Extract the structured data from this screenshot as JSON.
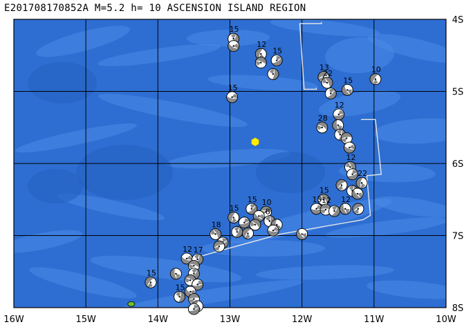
{
  "title": "E201708170852A M=5.2 h= 10 ASCENSION ISLAND REGION",
  "map": {
    "lon_range": [
      -16,
      -10
    ],
    "lat_range": [
      -8,
      -4
    ],
    "x_ticks": [
      "16W",
      "15W",
      "14W",
      "13W",
      "12W",
      "11W",
      "10W"
    ],
    "y_ticks": [
      "4S",
      "5S",
      "6S",
      "7S",
      "8S"
    ],
    "grid": true,
    "colors": {
      "ocean": "#2e6ed2",
      "ridge": "#4a8ae6",
      "deep": "#2560c2",
      "grid": "#000000",
      "plate_boundary": "#e8e8e8",
      "mechanism_shade": "#8a8a8a",
      "event_marker": "#ffee00",
      "island": "#6fbf2a"
    },
    "event": {
      "lon": -12.65,
      "lat": -5.7
    },
    "island": {
      "lon": -14.37,
      "lat": -7.95
    },
    "plate_boundary": [
      [
        [
          -11.93,
          -4.06
        ],
        [
          -11.73,
          -4.06
        ],
        [
          -11.73,
          -4.04
        ]
      ],
      [
        [
          -11.93,
          -4.06
        ],
        [
          -12.03,
          -4.06
        ],
        [
          -11.97,
          -4.97
        ],
        [
          -11.8,
          -4.97
        ],
        [
          -11.8,
          -4.95
        ]
      ],
      [
        [
          -11.18,
          -5.39
        ],
        [
          -10.98,
          -5.39
        ],
        [
          -10.9,
          -6.15
        ],
        [
          -11.1,
          -6.17
        ],
        [
          -11.05,
          -6.72
        ],
        [
          -11.15,
          -6.78
        ],
        [
          -12.3,
          -6.98
        ],
        [
          -13.1,
          -7.2
        ],
        [
          -13.45,
          -7.3
        ],
        [
          -13.45,
          -7.32
        ]
      ]
    ],
    "mechanisms": [
      {
        "lon": -12.95,
        "lat": -4.27,
        "label": "15",
        "rot": 30
      },
      {
        "lon": -12.95,
        "lat": -4.37,
        "label": "",
        "rot": 120
      },
      {
        "lon": -12.57,
        "lat": -4.48,
        "label": "12",
        "rot": 200
      },
      {
        "lon": -12.57,
        "lat": -4.6,
        "label": "",
        "rot": 290
      },
      {
        "lon": -12.35,
        "lat": -4.57,
        "label": "15",
        "rot": 60
      },
      {
        "lon": -12.4,
        "lat": -4.76,
        "label": "",
        "rot": 10
      },
      {
        "lon": -12.97,
        "lat": -5.08,
        "label": "15",
        "rot": 100
      },
      {
        "lon": -11.7,
        "lat": -4.8,
        "label": "13",
        "rot": 250
      },
      {
        "lon": -11.65,
        "lat": -4.88,
        "label": "22",
        "rot": 330
      },
      {
        "lon": -11.6,
        "lat": -5.03,
        "label": "",
        "rot": 45
      },
      {
        "lon": -11.37,
        "lat": -4.98,
        "label": "15",
        "rot": 150
      },
      {
        "lon": -10.98,
        "lat": -4.83,
        "label": "10",
        "rot": 210
      },
      {
        "lon": -11.49,
        "lat": -5.32,
        "label": "12",
        "rot": 80
      },
      {
        "lon": -11.72,
        "lat": -5.5,
        "label": "28",
        "rot": 300
      },
      {
        "lon": -11.5,
        "lat": -5.47,
        "label": "",
        "rot": 170
      },
      {
        "lon": -11.47,
        "lat": -5.6,
        "label": "",
        "rot": 20
      },
      {
        "lon": -11.38,
        "lat": -5.65,
        "label": "",
        "rot": 260
      },
      {
        "lon": -11.34,
        "lat": -5.78,
        "label": "",
        "rot": 110
      },
      {
        "lon": -11.33,
        "lat": -6.05,
        "label": "12",
        "rot": 340
      },
      {
        "lon": -11.3,
        "lat": -6.15,
        "label": "",
        "rot": 70
      },
      {
        "lon": -11.17,
        "lat": -6.27,
        "label": "22",
        "rot": 190
      },
      {
        "lon": -11.45,
        "lat": -6.3,
        "label": "",
        "rot": 230
      },
      {
        "lon": -11.3,
        "lat": -6.38,
        "label": "",
        "rot": 15
      },
      {
        "lon": -11.23,
        "lat": -6.42,
        "label": "",
        "rot": 140
      },
      {
        "lon": -11.7,
        "lat": -6.5,
        "label": "15",
        "rot": 320
      },
      {
        "lon": -11.8,
        "lat": -6.63,
        "label": "15",
        "rot": 90
      },
      {
        "lon": -11.67,
        "lat": -6.64,
        "label": "12",
        "rot": 270
      },
      {
        "lon": -11.55,
        "lat": -6.66,
        "label": "",
        "rot": 35
      },
      {
        "lon": -11.4,
        "lat": -6.63,
        "label": "12",
        "rot": 160
      },
      {
        "lon": -11.22,
        "lat": -6.63,
        "label": "",
        "rot": 240
      },
      {
        "lon": -12.7,
        "lat": -6.63,
        "label": "15",
        "rot": 50
      },
      {
        "lon": -12.5,
        "lat": -6.67,
        "label": "10",
        "rot": 280
      },
      {
        "lon": -12.6,
        "lat": -6.73,
        "label": "",
        "rot": 130
      },
      {
        "lon": -12.45,
        "lat": -6.8,
        "label": "8",
        "rot": 5
      },
      {
        "lon": -12.95,
        "lat": -6.75,
        "label": "15",
        "rot": 200
      },
      {
        "lon": -12.8,
        "lat": -6.82,
        "label": "",
        "rot": 75
      },
      {
        "lon": -12.65,
        "lat": -6.85,
        "label": "",
        "rot": 310
      },
      {
        "lon": -12.35,
        "lat": -6.85,
        "label": "",
        "rot": 180
      },
      {
        "lon": -12.4,
        "lat": -6.93,
        "label": "",
        "rot": 95
      },
      {
        "lon": -12.9,
        "lat": -6.95,
        "label": "",
        "rot": 25
      },
      {
        "lon": -12.75,
        "lat": -6.97,
        "label": "",
        "rot": 215
      },
      {
        "lon": -12.0,
        "lat": -6.98,
        "label": "",
        "rot": 145
      },
      {
        "lon": -13.2,
        "lat": -6.98,
        "label": "18",
        "rot": 330
      },
      {
        "lon": -13.1,
        "lat": -7.1,
        "label": "",
        "rot": 60
      },
      {
        "lon": -13.15,
        "lat": -7.15,
        "label": "",
        "rot": 250
      },
      {
        "lon": -13.6,
        "lat": -7.32,
        "label": "12",
        "rot": 110
      },
      {
        "lon": -13.45,
        "lat": -7.33,
        "label": "17",
        "rot": 20
      },
      {
        "lon": -13.5,
        "lat": -7.42,
        "label": "",
        "rot": 290
      },
      {
        "lon": -13.75,
        "lat": -7.53,
        "label": "",
        "rot": 170
      },
      {
        "lon": -13.5,
        "lat": -7.53,
        "label": "",
        "rot": 40
      },
      {
        "lon": -13.55,
        "lat": -7.62,
        "label": "",
        "rot": 300
      },
      {
        "lon": -13.45,
        "lat": -7.68,
        "label": "",
        "rot": 85
      },
      {
        "lon": -14.1,
        "lat": -7.65,
        "label": "15",
        "rot": 220
      },
      {
        "lon": -13.55,
        "lat": -7.78,
        "label": "",
        "rot": 130
      },
      {
        "lon": -13.7,
        "lat": -7.85,
        "label": "15",
        "rot": 10
      },
      {
        "lon": -13.5,
        "lat": -7.88,
        "label": "",
        "rot": 260
      },
      {
        "lon": -13.45,
        "lat": -7.98,
        "label": "",
        "rot": 190
      },
      {
        "lon": -13.5,
        "lat": -8.02,
        "label": "",
        "rot": 70
      }
    ]
  }
}
